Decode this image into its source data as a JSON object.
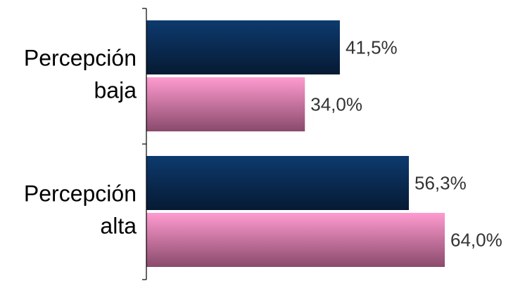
{
  "chart_data": {
    "type": "bar",
    "orientation": "horizontal",
    "categories": [
      "Percepción baja",
      "Percepción alta"
    ],
    "category_label_lines": [
      [
        "Percepción",
        "baja"
      ],
      [
        "Percepción",
        "alta"
      ]
    ],
    "series": [
      {
        "values": [
          41.5,
          56.3
        ],
        "labels": [
          "41,5%",
          "56,3%"
        ],
        "color_top": "#0d3a6e",
        "color_bottom": "#061a33"
      },
      {
        "values": [
          34.0,
          64.0
        ],
        "labels": [
          "34,0%",
          "64,0%"
        ],
        "color_top": "#ff9bd0",
        "color_bottom": "#8a4a6c"
      }
    ],
    "xlim": [
      0,
      80
    ],
    "grid": false,
    "legend": "none"
  }
}
